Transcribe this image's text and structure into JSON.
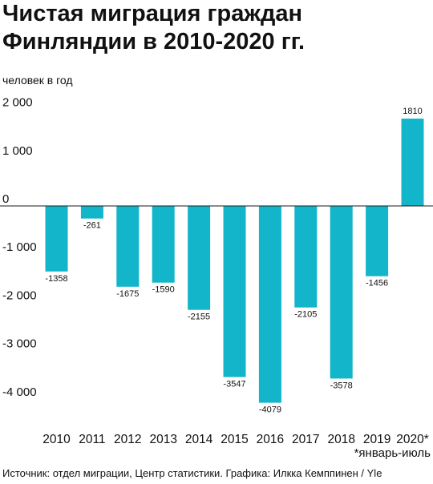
{
  "chart_data": {
    "type": "bar",
    "title": "Чистая миграция граждан Финляндии в 2010-2020 гг.",
    "xlabel": "",
    "ylabel": "человек в год",
    "categories": [
      "2010",
      "2011",
      "2012",
      "2013",
      "2014",
      "2015",
      "2016",
      "2017",
      "2018",
      "2019",
      "2020*"
    ],
    "values": [
      -1358,
      -261,
      -1675,
      -1590,
      -2155,
      -3547,
      -4079,
      -2105,
      -3578,
      -1456,
      1810
    ],
    "ylim": [
      -4000,
      2000
    ],
    "y_ticks": [
      2000,
      1000,
      0,
      -1000,
      -2000,
      -3000,
      -4000
    ],
    "y_tick_labels": [
      "2 000",
      "1 000",
      "0",
      "-1 000",
      "-2 000",
      "-3 000",
      "-4 000"
    ],
    "grid": false,
    "bar_color": "#12b5c9",
    "footnote": "*январь-июль",
    "source": "Источник: отдел миграции, Центр статистики. Графика: Илкка Кемппинен / Yle"
  }
}
